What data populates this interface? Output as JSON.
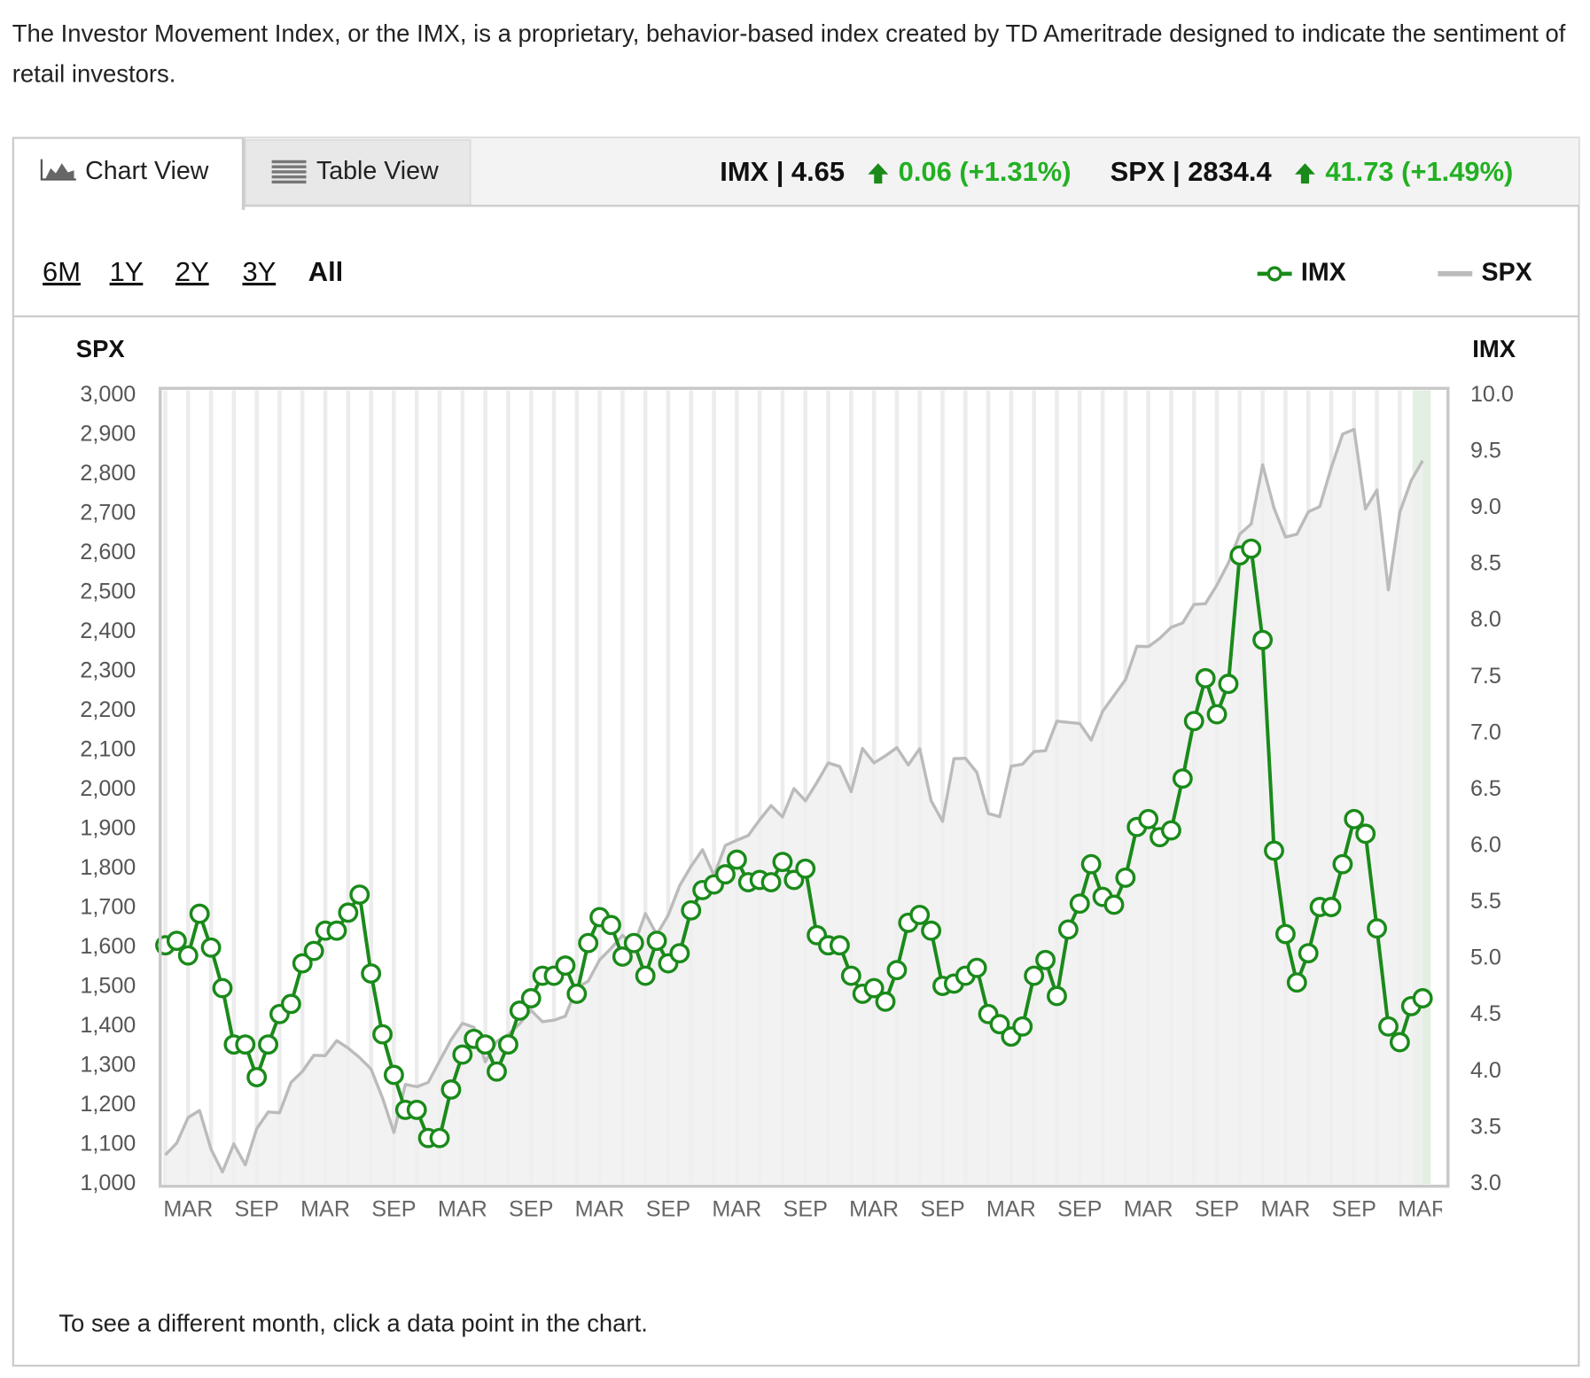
{
  "page": {
    "intro": "The Investor Movement Index, or the IMX, is a proprietary, behavior-based index created by TD Ameritrade designed to indicate the sentiment of retail investors.",
    "tabs": [
      "Chart View",
      "Table View"
    ],
    "quote": {
      "imx": "IMX | 4.65",
      "imx_change": "0.06 (+1.31%)",
      "spx": "SPX | 2834.4",
      "spx_change": "41.73 (+1.49%)"
    },
    "ranges": [
      "6M",
      "1Y",
      "2Y",
      "3Y",
      "All"
    ],
    "footer": "To see a different month, click a data point in the chart."
  },
  "chart_data": {
    "type": "line",
    "y_label": "SPX",
    "y2_label": "IMX",
    "categories": [
      null,
      null,
      "MAR",
      null,
      null,
      null,
      null,
      null,
      "SEP",
      null,
      null,
      null,
      null,
      null,
      "MAR",
      null,
      null,
      null,
      null,
      null,
      "SEP",
      null,
      null,
      null,
      null,
      null,
      "MAR",
      null,
      null,
      null,
      null,
      null,
      "SEP",
      null,
      null,
      null,
      null,
      null,
      "MAR",
      null,
      null,
      null,
      null,
      null,
      "SEP",
      null,
      null,
      null,
      null,
      null,
      "MAR",
      null,
      null,
      null,
      null,
      null,
      "SEP",
      null,
      null,
      null,
      null,
      null,
      "MAR",
      null,
      null,
      null,
      null,
      null,
      "SEP",
      null,
      null,
      null,
      null,
      null,
      "MAR",
      null,
      null,
      null,
      null,
      null,
      "SEP",
      null,
      null,
      null,
      null,
      null,
      "MAR",
      null,
      null,
      null,
      null,
      null,
      "SEP",
      null,
      null,
      null,
      null,
      null,
      "MAR",
      null,
      null,
      null,
      null,
      null,
      "SEP",
      null,
      null,
      null,
      null,
      null,
      "MAR"
    ],
    "series": [
      {
        "name": "IMX",
        "color": "#1a8a1a",
        "axis": "y2",
        "values": [
          5.12,
          5.16,
          5.03,
          5.4,
          5.1,
          4.74,
          4.24,
          4.24,
          3.95,
          4.24,
          4.51,
          4.6,
          4.96,
          5.07,
          5.25,
          5.25,
          5.41,
          5.57,
          4.87,
          4.33,
          3.97,
          3.66,
          3.66,
          3.41,
          3.41,
          3.84,
          4.15,
          4.29,
          4.24,
          4.0,
          4.24,
          4.54,
          4.65,
          4.85,
          4.85,
          4.94,
          4.69,
          5.14,
          5.37,
          5.3,
          5.02,
          5.14,
          4.85,
          5.16,
          4.96,
          5.05,
          5.43,
          5.61,
          5.66,
          5.75,
          5.88,
          5.68,
          5.7,
          5.68,
          5.86,
          5.7,
          5.8,
          5.21,
          5.12,
          5.12,
          4.85,
          4.69,
          4.74,
          4.62,
          4.9,
          5.32,
          5.39,
          5.25,
          4.76,
          4.78,
          4.85,
          4.92,
          4.51,
          4.42,
          4.31,
          4.4,
          4.85,
          4.99,
          4.67,
          5.26,
          5.49,
          5.84,
          5.55,
          5.48,
          5.72,
          6.17,
          6.24,
          6.08,
          6.14,
          6.6,
          7.11,
          7.49,
          7.17,
          7.44,
          8.58,
          8.64,
          7.83,
          5.96,
          5.22,
          4.79,
          5.05,
          5.46,
          5.46,
          5.84,
          6.24,
          6.11,
          5.27,
          4.4,
          4.26,
          4.58,
          4.65
        ]
      },
      {
        "name": "SPX",
        "color": "#bbbbbb",
        "values": [
          1074,
          1104,
          1169,
          1187,
          1089,
          1031,
          1102,
          1049,
          1141,
          1183,
          1181,
          1258,
          1286,
          1327,
          1326,
          1364,
          1345,
          1321,
          1292,
          1219,
          1131,
          1253,
          1247,
          1258,
          1312,
          1366,
          1408,
          1398,
          1310,
          1362,
          1379,
          1407,
          1441,
          1412,
          1416,
          1426,
          1498,
          1515,
          1569,
          1598,
          1631,
          1606,
          1686,
          1633,
          1682,
          1757,
          1806,
          1848,
          1783,
          1859,
          1872,
          1884,
          1924,
          1960,
          1931,
          2003,
          1972,
          2018,
          2068,
          2059,
          1995,
          2105,
          2068,
          2086,
          2107,
          2063,
          2104,
          1972,
          1920,
          2079,
          2080,
          2044,
          1940,
          1932,
          2060,
          2065,
          2097,
          2099,
          2174,
          2171,
          2168,
          2126,
          2199,
          2239,
          2279,
          2364,
          2363,
          2384,
          2412,
          2423,
          2470,
          2472,
          2519,
          2575,
          2648,
          2674,
          2824,
          2714,
          2641,
          2648,
          2705,
          2718,
          2816,
          2902,
          2914,
          2712,
          2760,
          2507,
          2704,
          2784,
          2834.4
        ]
      }
    ],
    "ylim": [
      1000,
      3000
    ],
    "yticks": [
      {
        "value": 1000,
        "label": "1,000"
      },
      {
        "value": 1100,
        "label": "1,100"
      },
      {
        "value": 1200,
        "label": "1,200"
      },
      {
        "value": 1300,
        "label": "1,300"
      },
      {
        "value": 1400,
        "label": "1,400"
      },
      {
        "value": 1500,
        "label": "1,500"
      },
      {
        "value": 1600,
        "label": "1,600"
      },
      {
        "value": 1700,
        "label": "1,700"
      },
      {
        "value": 1800,
        "label": "1,800"
      },
      {
        "value": 1900,
        "label": "1,900"
      },
      {
        "value": 2000,
        "label": "2,000"
      },
      {
        "value": 2100,
        "label": "2,100"
      },
      {
        "value": 2200,
        "label": "2,200"
      },
      {
        "value": 2300,
        "label": "2,300"
      },
      {
        "value": 2400,
        "label": "2,400"
      },
      {
        "value": 2500,
        "label": "2,500"
      },
      {
        "value": 2600,
        "label": "2,600"
      },
      {
        "value": 2700,
        "label": "2,700"
      },
      {
        "value": 2800,
        "label": "2,800"
      },
      {
        "value": 2900,
        "label": "2,900"
      },
      {
        "value": 3000,
        "label": "3,000"
      }
    ],
    "y2lim": [
      3,
      10
    ],
    "y2ticks": [
      {
        "value": 3,
        "label": "3.0"
      },
      3.5,
      {
        "value": 4,
        "label": "4.0"
      },
      4.5,
      {
        "value": 5,
        "label": "5.0"
      },
      5.5,
      {
        "value": 6,
        "label": "6.0"
      },
      6.5,
      {
        "value": 7,
        "label": "7.0"
      },
      7.5,
      {
        "value": 8,
        "label": "8.0"
      },
      8.5,
      {
        "value": 9,
        "label": "9.0"
      },
      9.5,
      {
        "value": 10,
        "label": "10.0"
      }
    ]
  }
}
